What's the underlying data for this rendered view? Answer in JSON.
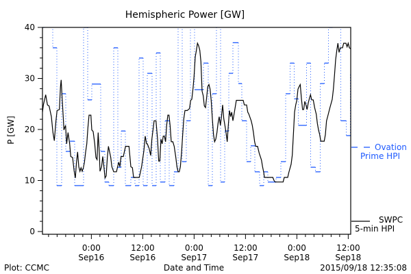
{
  "chart_data": {
    "type": "line",
    "title": "Hemispheric Power [GW]",
    "xlabel": "Date and Time",
    "ylabel": "P [GW]",
    "ylim": [
      0,
      40
    ],
    "yticks": [
      "0",
      "10",
      "20",
      "30",
      "40"
    ],
    "yminor_step": 2,
    "xlim": [
      -11.42,
      60.58
    ],
    "xminor_step": 2,
    "xticks": [
      {
        "h": 0,
        "time": "0:00",
        "date": "Sep16"
      },
      {
        "h": 12,
        "time": "12:00",
        "date": "Sep16"
      },
      {
        "h": 24,
        "time": "0:00",
        "date": "Sep17"
      },
      {
        "h": 36,
        "time": "12:00",
        "date": "Sep17"
      },
      {
        "h": 48,
        "time": "0:00",
        "date": "Sep18"
      },
      {
        "h": 60,
        "time": "12:00",
        "date": "Sep18"
      }
    ],
    "series": [
      {
        "legend": [
          "SWPC",
          "5-min HPI"
        ],
        "color": "#000000",
        "points": [
          [
            -11.42,
            23.4
          ],
          [
            -11.21,
            24.8
          ],
          [
            -10.67,
            26.8
          ],
          [
            -10.25,
            24.8
          ],
          [
            -9.87,
            24.6
          ],
          [
            -9.34,
            22.5
          ],
          [
            -8.97,
            19.4
          ],
          [
            -8.65,
            17.8
          ],
          [
            -8.27,
            21.7
          ],
          [
            -8.01,
            23.7
          ],
          [
            -7.47,
            23.9
          ],
          [
            -7.21,
            28.4
          ],
          [
            -7.05,
            29.7
          ],
          [
            -6.83,
            26.1
          ],
          [
            -6.57,
            22.5
          ],
          [
            -6.41,
            19.9
          ],
          [
            -6.03,
            20.8
          ],
          [
            -5.77,
            17.2
          ],
          [
            -5.45,
            19.4
          ],
          [
            -5.07,
            17.2
          ],
          [
            -4.81,
            14.7
          ],
          [
            -4.38,
            14.5
          ],
          [
            -4.01,
            11.8
          ],
          [
            -3.74,
            10.5
          ],
          [
            -3.47,
            13.6
          ],
          [
            -3.21,
            15.6
          ],
          [
            -2.94,
            12.7
          ],
          [
            -2.67,
            11.8
          ],
          [
            -2.41,
            12.5
          ],
          [
            -2.14,
            11.8
          ],
          [
            -1.87,
            12.5
          ],
          [
            -1.61,
            13.6
          ],
          [
            -1.34,
            15.6
          ],
          [
            -1.07,
            17.2
          ],
          [
            -0.81,
            20.3
          ],
          [
            -0.54,
            22.8
          ],
          [
            -0.11,
            22.8
          ],
          [
            0.1,
            19.9
          ],
          [
            0.42,
            19.6
          ],
          [
            0.79,
            17.2
          ],
          [
            1.06,
            14.5
          ],
          [
            1.33,
            14.1
          ],
          [
            1.59,
            19.4
          ],
          [
            1.86,
            15.4
          ],
          [
            2.02,
            11.8
          ],
          [
            2.39,
            12.7
          ],
          [
            2.66,
            14.7
          ],
          [
            2.93,
            12.7
          ],
          [
            3.19,
            10.5
          ],
          [
            3.46,
            10.9
          ],
          [
            3.73,
            14.5
          ],
          [
            3.99,
            16.7
          ],
          [
            4.26,
            15.6
          ],
          [
            4.53,
            14.5
          ],
          [
            4.79,
            12.7
          ],
          [
            5.22,
            11.7
          ],
          [
            5.86,
            11.7
          ],
          [
            6.39,
            13.6
          ],
          [
            6.66,
            12.7
          ],
          [
            6.93,
            14.7
          ],
          [
            7.46,
            14.7
          ],
          [
            7.99,
            16.7
          ],
          [
            8.79,
            16.7
          ],
          [
            9.22,
            12.7
          ],
          [
            9.59,
            12.5
          ],
          [
            9.86,
            10.6
          ],
          [
            11.19,
            10.6
          ],
          [
            11.73,
            12.7
          ],
          [
            12.26,
            15.8
          ],
          [
            12.58,
            18.7
          ],
          [
            12.9,
            17.2
          ],
          [
            13.06,
            17.2
          ],
          [
            13.49,
            16.3
          ],
          [
            13.86,
            14.9
          ],
          [
            14.13,
            18.1
          ],
          [
            14.66,
            21.7
          ],
          [
            15.09,
            21.7
          ],
          [
            15.46,
            18.1
          ],
          [
            15.73,
            13.8
          ],
          [
            15.99,
            13.8
          ],
          [
            16.26,
            18.1
          ],
          [
            16.53,
            17.2
          ],
          [
            16.79,
            18.7
          ],
          [
            17.06,
            18.7
          ],
          [
            17.33,
            17.6
          ],
          [
            17.59,
            20.8
          ],
          [
            17.86,
            22.8
          ],
          [
            18.13,
            22.8
          ],
          [
            18.39,
            20.8
          ],
          [
            18.66,
            17.6
          ],
          [
            19.03,
            17.6
          ],
          [
            19.35,
            16.7
          ],
          [
            19.73,
            14.5
          ],
          [
            19.99,
            12.7
          ],
          [
            20.26,
            11.7
          ],
          [
            20.53,
            11.7
          ],
          [
            20.79,
            12.7
          ],
          [
            21.06,
            15.4
          ],
          [
            21.33,
            19.0
          ],
          [
            21.59,
            22.1
          ],
          [
            21.86,
            23.7
          ],
          [
            22.39,
            23.7
          ],
          [
            22.93,
            24.1
          ],
          [
            23.19,
            25.7
          ],
          [
            23.46,
            25.9
          ],
          [
            23.73,
            27.9
          ],
          [
            23.99,
            30.4
          ],
          [
            24.26,
            34.2
          ],
          [
            24.53,
            35.5
          ],
          [
            24.79,
            36.9
          ],
          [
            25.06,
            36.4
          ],
          [
            25.33,
            35.5
          ],
          [
            25.59,
            33.3
          ],
          [
            25.86,
            27.5
          ],
          [
            26.13,
            26.6
          ],
          [
            26.39,
            24.6
          ],
          [
            26.66,
            24.3
          ],
          [
            26.93,
            26.3
          ],
          [
            27.19,
            28.4
          ],
          [
            27.46,
            28.8
          ],
          [
            27.73,
            27.9
          ],
          [
            27.99,
            25.7
          ],
          [
            28.26,
            22.1
          ],
          [
            28.53,
            19.0
          ],
          [
            28.79,
            17.6
          ],
          [
            29.06,
            18.1
          ],
          [
            29.33,
            19.4
          ],
          [
            29.59,
            21.2
          ],
          [
            29.86,
            22.5
          ],
          [
            30.13,
            20.8
          ],
          [
            30.39,
            22.5
          ],
          [
            30.66,
            24.8
          ],
          [
            30.93,
            22.1
          ],
          [
            31.19,
            20.8
          ],
          [
            31.46,
            19.4
          ],
          [
            31.73,
            17.6
          ],
          [
            31.99,
            20.8
          ],
          [
            32.26,
            23.7
          ],
          [
            32.53,
            22.5
          ],
          [
            32.79,
            23.4
          ],
          [
            33.06,
            21.7
          ],
          [
            33.33,
            23.0
          ],
          [
            33.86,
            25.7
          ],
          [
            35.46,
            25.7
          ],
          [
            35.73,
            24.8
          ],
          [
            36.26,
            24.8
          ],
          [
            36.53,
            23.4
          ],
          [
            36.79,
            23.0
          ],
          [
            37.33,
            21.7
          ],
          [
            37.59,
            20.8
          ],
          [
            37.86,
            19.4
          ],
          [
            38.13,
            17.6
          ],
          [
            38.39,
            16.7
          ],
          [
            38.82,
            16.7
          ],
          [
            39.19,
            15.4
          ],
          [
            39.73,
            14.0
          ],
          [
            39.99,
            12.7
          ],
          [
            40.26,
            11.6
          ],
          [
            40.42,
            10.6
          ],
          [
            42.39,
            10.6
          ],
          [
            42.66,
            10.0
          ],
          [
            42.93,
            9.7
          ],
          [
            44.79,
            9.7
          ],
          [
            45.06,
            10.6
          ],
          [
            45.86,
            10.6
          ],
          [
            46.13,
            11.6
          ],
          [
            46.66,
            13.2
          ],
          [
            46.93,
            15.0
          ],
          [
            47.19,
            19.0
          ],
          [
            47.46,
            23.4
          ],
          [
            47.73,
            24.8
          ],
          [
            47.99,
            25.7
          ],
          [
            48.26,
            27.9
          ],
          [
            48.53,
            28.4
          ],
          [
            48.79,
            28.8
          ],
          [
            49.06,
            26.1
          ],
          [
            49.33,
            23.9
          ],
          [
            49.59,
            23.9
          ],
          [
            49.86,
            25.5
          ],
          [
            50.13,
            24.8
          ],
          [
            50.39,
            23.9
          ],
          [
            50.66,
            25.2
          ],
          [
            50.93,
            26.1
          ],
          [
            51.19,
            26.8
          ],
          [
            51.46,
            25.8
          ],
          [
            51.83,
            25.8
          ],
          [
            52.15,
            24.3
          ],
          [
            52.53,
            23.0
          ],
          [
            52.79,
            21.2
          ],
          [
            53.06,
            19.9
          ],
          [
            53.33,
            19.0
          ],
          [
            53.59,
            17.7
          ],
          [
            54.39,
            17.7
          ],
          [
            54.66,
            19.0
          ],
          [
            54.93,
            21.7
          ],
          [
            55.19,
            22.5
          ],
          [
            55.73,
            24.3
          ],
          [
            56.26,
            25.9
          ],
          [
            56.53,
            27.9
          ],
          [
            56.79,
            30.6
          ],
          [
            57.06,
            33.7
          ],
          [
            57.33,
            35.5
          ],
          [
            57.59,
            36.9
          ],
          [
            57.86,
            35.1
          ],
          [
            58.13,
            36.0
          ],
          [
            58.66,
            36.0
          ],
          [
            58.93,
            36.9
          ],
          [
            59.46,
            36.9
          ],
          [
            59.73,
            36.2
          ],
          [
            59.99,
            36.9
          ],
          [
            60.26,
            36.0
          ],
          [
            60.58,
            35.8
          ]
        ]
      },
      {
        "legend": [
          "Ovation",
          "Prime HPI"
        ],
        "color": "#1e5aff",
        "steps": [
          [
            -11.42,
            40
          ],
          [
            -10.94,
            45
          ],
          [
            -9.02,
            36
          ],
          [
            -8.06,
            9
          ],
          [
            -6.94,
            27
          ],
          [
            -5.98,
            15.7
          ],
          [
            -5.02,
            17.7
          ],
          [
            -3.9,
            9
          ],
          [
            -1.82,
            40
          ],
          [
            -0.86,
            25.8
          ],
          [
            0.1,
            28.9
          ],
          [
            2.18,
            15.7
          ],
          [
            3.14,
            9.7
          ],
          [
            4.1,
            9
          ],
          [
            5.22,
            36
          ],
          [
            6.18,
            12.6
          ],
          [
            6.98,
            19.7
          ],
          [
            7.94,
            9
          ],
          [
            9.22,
            10.6
          ],
          [
            10.18,
            9
          ],
          [
            11.14,
            34
          ],
          [
            12.1,
            9
          ],
          [
            13.06,
            31
          ],
          [
            14.18,
            9
          ],
          [
            15.14,
            35
          ],
          [
            16.1,
            9.7
          ],
          [
            17.22,
            21.7
          ],
          [
            18.18,
            9
          ],
          [
            19.3,
            11.7
          ],
          [
            20.26,
            45
          ],
          [
            21.22,
            13.7
          ],
          [
            22.18,
            21.7
          ],
          [
            23.14,
            45
          ],
          [
            24.1,
            27.8
          ],
          [
            26.18,
            33
          ],
          [
            27.3,
            9
          ],
          [
            28.26,
            27
          ],
          [
            29.22,
            45
          ],
          [
            30.18,
            9.7
          ],
          [
            31.14,
            19.7
          ],
          [
            32.1,
            31
          ],
          [
            33.06,
            37
          ],
          [
            34.34,
            29
          ],
          [
            35.14,
            21.7
          ],
          [
            36.26,
            13.7
          ],
          [
            37.22,
            16.8
          ],
          [
            38.18,
            11.7
          ],
          [
            39.3,
            9
          ],
          [
            40.26,
            11.7
          ],
          [
            41.22,
            9.7
          ],
          [
            43.14,
            10.6
          ],
          [
            44.26,
            13.7
          ],
          [
            45.38,
            27
          ],
          [
            46.42,
            33
          ],
          [
            47.38,
            26
          ],
          [
            48.34,
            20.8
          ],
          [
            50.26,
            33
          ],
          [
            51.22,
            12.6
          ],
          [
            52.34,
            11.7
          ],
          [
            53.46,
            29
          ],
          [
            54.42,
            33
          ],
          [
            55.38,
            40
          ],
          [
            56.34,
            45
          ],
          [
            58.26,
            21.7
          ],
          [
            59.54,
            18.8
          ],
          [
            60.5,
            31
          ]
        ]
      }
    ]
  },
  "footer": {
    "credit": "Plot: CCMC",
    "timestamp": "2015/09/18 12:35:08"
  }
}
